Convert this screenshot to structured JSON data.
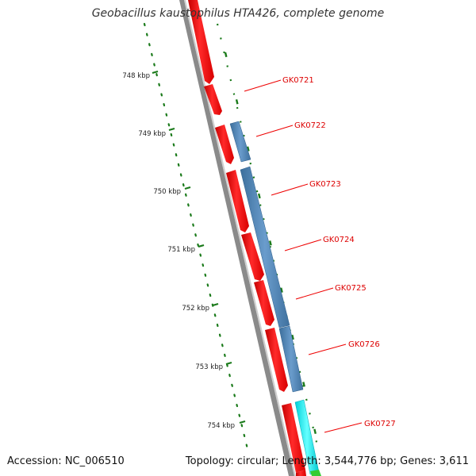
{
  "title": "Geobacillus kaustophilus HTA426, complete genome",
  "accession": "Accession: NC_006510",
  "summary": "Topology: circular; Length: 3,544,776 bp; Genes: 3,611",
  "colors": {
    "cds_red": "#ff0000",
    "rna_blue": "#4a7fae",
    "misc_cyan": "#00e5ee",
    "misc_green": "#33cc33",
    "backbone": "#888888",
    "tick_green": "#1a7a1a",
    "label_red": "#dd0000"
  },
  "ticks": [
    {
      "label": "748 kbp"
    },
    {
      "label": "749 kbp"
    },
    {
      "label": "750 kbp"
    },
    {
      "label": "751 kbp"
    },
    {
      "label": "752 kbp"
    },
    {
      "label": "753 kbp"
    },
    {
      "label": "754 kbp"
    }
  ],
  "genes": [
    {
      "label": "GK0721"
    },
    {
      "label": "GK0722"
    },
    {
      "label": "GK0723"
    },
    {
      "label": "GK0724"
    },
    {
      "label": "GK0725"
    },
    {
      "label": "GK0726"
    },
    {
      "label": "GK0727"
    }
  ]
}
